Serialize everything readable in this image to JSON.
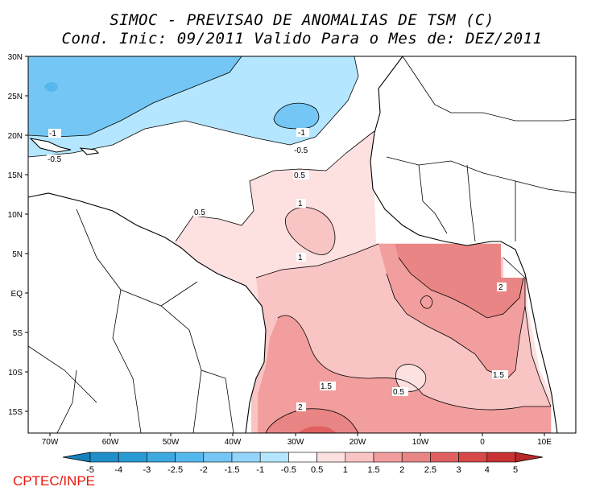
{
  "title_line1": "SIMOC - PREVISAO DE ANOMALIAS DE TSM (C)",
  "title_line2": "Cond. Inic: 09/2011   Valido Para o Mes de: DEZ/2011",
  "credit": "CPTEC/INPE",
  "lat_labels": [
    "30N",
    "25N",
    "20N",
    "15N",
    "10N",
    "5N",
    "EQ",
    "5S",
    "10S",
    "15S"
  ],
  "lon_labels": [
    "70W",
    "60W",
    "50W",
    "40W",
    "30W",
    "20W",
    "10W",
    "0",
    "10E"
  ],
  "contour_labels": [
    "-1",
    "-0.5",
    "-1",
    "-0.5",
    "0.5",
    "0.5",
    "1",
    "1",
    "2",
    "1.5",
    "0.5",
    "1.5",
    "2"
  ],
  "colorbar": {
    "labels": [
      "-5",
      "-4",
      "-3",
      "-2.5",
      "-2",
      "-1.5",
      "-1",
      "-0.5",
      "0.5",
      "1",
      "1.5",
      "2",
      "2.5",
      "3",
      "4",
      "5"
    ],
    "colors": [
      "#1f8ec9",
      "#2a9ad4",
      "#3da9e0",
      "#55b8ec",
      "#74c6f4",
      "#93d4fa",
      "#b4e6ff",
      "#ffffff",
      "#fde0e0",
      "#f9c4c4",
      "#f29e9e",
      "#e98585",
      "#e06060",
      "#d74848",
      "#c83232"
    ],
    "left_arrow_color": "#1680bd",
    "right_arrow_color": "#b82828"
  }
}
